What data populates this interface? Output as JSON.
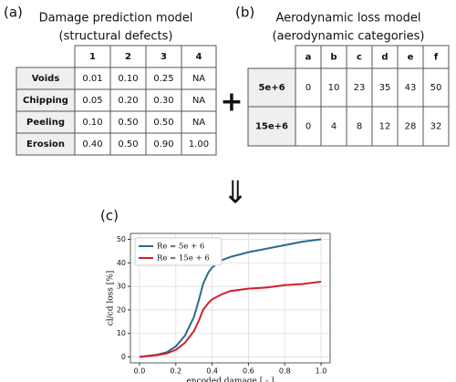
{
  "panel_a": {
    "label": "(a)",
    "title": "Damage prediction model",
    "subtitle": "(structural defects)",
    "columns": [
      "1",
      "2",
      "3",
      "4"
    ],
    "rows": [
      {
        "label": "Voids",
        "cells": [
          "0.01",
          "0.10",
          "0.25",
          "NA"
        ]
      },
      {
        "label": "Chipping",
        "cells": [
          "0.05",
          "0.20",
          "0.30",
          "NA"
        ]
      },
      {
        "label": "Peeling",
        "cells": [
          "0.10",
          "0.50",
          "0.50",
          "NA"
        ]
      },
      {
        "label": "Erosion",
        "cells": [
          "0.40",
          "0.50",
          "0.90",
          "1.00"
        ]
      }
    ]
  },
  "panel_b": {
    "label": "(b)",
    "title": "Aerodynamic loss model",
    "subtitle": "(aerodynamic categories)",
    "columns": [
      "a",
      "b",
      "c",
      "d",
      "e",
      "f"
    ],
    "rows": [
      {
        "label": "5e+6",
        "cells": [
          "0",
          "10",
          "23",
          "35",
          "43",
          "50"
        ]
      },
      {
        "label": "15e+6",
        "cells": [
          "0",
          "4",
          "8",
          "12",
          "28",
          "32"
        ]
      }
    ]
  },
  "panel_c": {
    "label": "(c)"
  },
  "chart_data": {
    "type": "line",
    "xlabel": "encoded damage [ - ]",
    "ylabel": "cl/cd loss [%]",
    "x": [
      0,
      0.1,
      0.15,
      0.2,
      0.25,
      0.3,
      0.33,
      0.35,
      0.38,
      0.4,
      0.45,
      0.5,
      0.6,
      0.7,
      0.8,
      0.9,
      1.0
    ],
    "series": [
      {
        "name": "Re = 5e + 6",
        "color": "#2b6a8f",
        "values": [
          0,
          1,
          2,
          4.5,
          9,
          17,
          25,
          31,
          36,
          38,
          41,
          42.5,
          44.5,
          46,
          47.5,
          49,
          50
        ]
      },
      {
        "name": "Re = 15e + 6",
        "color": "#d0202a",
        "values": [
          0,
          0.8,
          1.5,
          3,
          6,
          11,
          16,
          20,
          23,
          24.5,
          26.5,
          28,
          29,
          29.5,
          30.5,
          31,
          32
        ]
      }
    ],
    "xlim": [
      -0.05,
      1.05
    ],
    "ylim": [
      -2.5,
      52.5
    ],
    "xticks": [
      {
        "value": 0,
        "label": "0.0"
      },
      {
        "value": 0.2,
        "label": "0.2"
      },
      {
        "value": 0.4,
        "label": "0.4"
      },
      {
        "value": 0.6,
        "label": "0.6"
      },
      {
        "value": 0.8,
        "label": "0.8"
      },
      {
        "value": 1.0,
        "label": "1.0"
      }
    ],
    "yticks": [
      0,
      10,
      20,
      30,
      40,
      50
    ],
    "grid": true,
    "legend": "upper-left"
  }
}
